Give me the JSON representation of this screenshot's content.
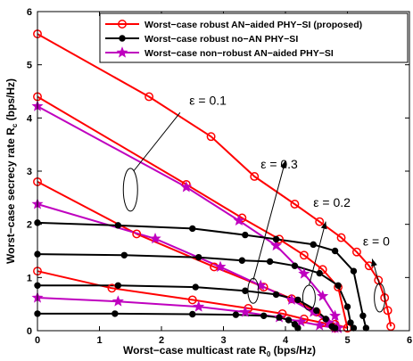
{
  "chart_data": {
    "type": "line",
    "xlabel_main": "Worst−case multicast rate R",
    "xlabel_sub": "0",
    "xlabel_unit": " (bps/Hz)",
    "ylabel_main": "Worst−case secrecy rate R",
    "ylabel_sub": "c",
    "ylabel_unit": " (bps/Hz)",
    "xlim": [
      0,
      6
    ],
    "ylim": [
      0,
      6
    ],
    "xticks": [
      "0",
      "1",
      "2",
      "3",
      "4",
      "5",
      "6"
    ],
    "yticks": [
      "0",
      "1",
      "2",
      "3",
      "4",
      "5",
      "6"
    ],
    "grid": false,
    "legend_position": "top-right",
    "legend": [
      {
        "label": "Worst−case robust AN−aided PHY−SI (proposed)",
        "color": "#ff0000",
        "marker": "circle"
      },
      {
        "label": "Worst−case robust no−AN PHY−SI",
        "color": "#000000",
        "marker": "dot"
      },
      {
        "label": "Worst−case non−robust AN−aided PHY−SI",
        "color": "#bf00bf",
        "marker": "star"
      }
    ],
    "series": [
      {
        "style": "robust-an",
        "group": "eps0",
        "x": [
          0,
          1.8,
          2.8,
          3.5,
          4.15,
          4.55,
          4.9,
          5.15,
          5.35,
          5.5,
          5.6,
          5.65,
          5.7
        ],
        "y": [
          5.58,
          4.4,
          3.65,
          2.9,
          2.38,
          2.05,
          1.75,
          1.48,
          1.22,
          0.95,
          0.62,
          0.38,
          0.08
        ]
      },
      {
        "style": "robust-an",
        "group": "eps0.1",
        "x": [
          0,
          2.4,
          3.3,
          3.9,
          4.3,
          4.6,
          4.85,
          5.0
        ],
        "y": [
          4.4,
          2.75,
          2.12,
          1.72,
          1.42,
          1.15,
          0.82,
          0.05
        ]
      },
      {
        "style": "robust-an",
        "group": "eps0.2",
        "x": [
          0,
          1.6,
          2.85,
          3.65,
          4.1,
          4.5,
          4.8,
          5.0
        ],
        "y": [
          2.8,
          1.82,
          1.2,
          0.82,
          0.6,
          0.35,
          0.12,
          0.05
        ]
      },
      {
        "style": "robust-an",
        "group": "eps0.3",
        "x": [
          0,
          1.2,
          2.5,
          3.4,
          3.95,
          4.3,
          4.6,
          4.8
        ],
        "y": [
          1.12,
          0.8,
          0.58,
          0.42,
          0.32,
          0.22,
          0.15,
          0.05
        ]
      },
      {
        "style": "non-robust-an",
        "group": "eps0.1",
        "x": [
          0,
          2.4,
          3.25,
          3.85,
          4.3,
          4.6,
          4.8,
          4.85
        ],
        "y": [
          4.22,
          2.7,
          2.07,
          1.6,
          1.07,
          0.65,
          0.28,
          0.05
        ]
      },
      {
        "style": "non-robust-an",
        "group": "eps0.2",
        "x": [
          0,
          1.9,
          2.95,
          3.6,
          4.1,
          4.45,
          4.7,
          4.85
        ],
        "y": [
          2.38,
          1.73,
          1.2,
          0.85,
          0.58,
          0.35,
          0.15,
          0.05
        ]
      },
      {
        "style": "non-robust-an",
        "group": "eps0.3",
        "x": [
          0,
          1.3,
          2.6,
          3.35,
          3.9,
          4.25,
          4.55,
          4.8
        ],
        "y": [
          0.62,
          0.55,
          0.45,
          0.35,
          0.25,
          0.17,
          0.1,
          0.05
        ]
      },
      {
        "style": "robust-no-an",
        "group": "eps0",
        "x": [
          0,
          1.3,
          2.5,
          3.35,
          3.85,
          4.45,
          4.8,
          5.1,
          5.25,
          5.3
        ],
        "y": [
          2.03,
          1.98,
          1.92,
          1.8,
          1.72,
          1.62,
          1.5,
          1.12,
          0.28,
          0.05
        ]
      },
      {
        "style": "robust-no-an",
        "group": "eps0.1",
        "x": [
          0,
          1.4,
          2.6,
          3.3,
          3.75,
          4.15,
          4.55,
          4.85,
          5.0,
          5.05,
          5.1
        ],
        "y": [
          1.44,
          1.42,
          1.38,
          1.32,
          1.3,
          1.22,
          1.08,
          0.85,
          0.45,
          0.15,
          0.05
        ]
      },
      {
        "style": "robust-no-an",
        "group": "eps0.2",
        "x": [
          0,
          1.3,
          2.55,
          3.35,
          3.85,
          4.2,
          4.5,
          4.65,
          4.75,
          4.8
        ],
        "y": [
          0.85,
          0.85,
          0.82,
          0.75,
          0.68,
          0.58,
          0.38,
          0.22,
          0.08,
          0.05
        ]
      },
      {
        "style": "robust-no-an",
        "group": "eps0.3",
        "x": [
          0,
          1.25,
          2.5,
          3.2,
          3.65,
          3.9,
          4.05,
          4.15,
          4.2
        ],
        "y": [
          0.32,
          0.32,
          0.31,
          0.3,
          0.28,
          0.25,
          0.2,
          0.12,
          0.05
        ]
      }
    ],
    "annotations": [
      {
        "text": "ε = 0.1",
        "x": 2.45,
        "y": 4.25
      },
      {
        "text": "ε = 0.3",
        "x": 3.6,
        "y": 3.05
      },
      {
        "text": "ε = 0.2",
        "x": 4.45,
        "y": 2.33
      },
      {
        "text": "ε = 0",
        "x": 5.25,
        "y": 1.6
      }
    ]
  }
}
